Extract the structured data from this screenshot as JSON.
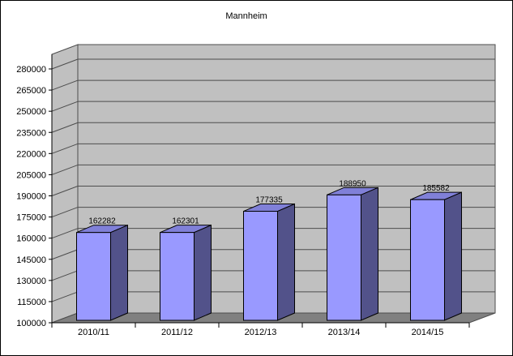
{
  "window": {
    "background": "#FFFFFF",
    "border_color": "#000000"
  },
  "chart_data": {
    "type": "bar",
    "style": "3d-column",
    "title": "Mannheim",
    "categories": [
      "2010/11",
      "2011/12",
      "2012/13",
      "2013/14",
      "2014/15"
    ],
    "values": [
      162282,
      162301,
      177335,
      188950,
      185582
    ],
    "data_labels": [
      "162282",
      "162301",
      "177335",
      "188950",
      "185582"
    ],
    "xlabel": "",
    "ylabel": "",
    "ylim": [
      100000,
      280000
    ],
    "ytick_step": 15000,
    "yticks": [
      100000,
      115000,
      130000,
      145000,
      160000,
      175000,
      190000,
      205000,
      220000,
      235000,
      250000,
      265000,
      280000
    ],
    "gridlines": true,
    "legend": "none",
    "colors": {
      "bar_front": "#9999FF",
      "bar_top": "#8080D8",
      "bar_side": "#52528A",
      "bar_outline": "#000000",
      "wall": "#C0C0C0",
      "floor": "#808080",
      "grid": "#4D4D4D",
      "axis": "#000000",
      "text": "#000000",
      "background": "#FFFFFF"
    }
  }
}
